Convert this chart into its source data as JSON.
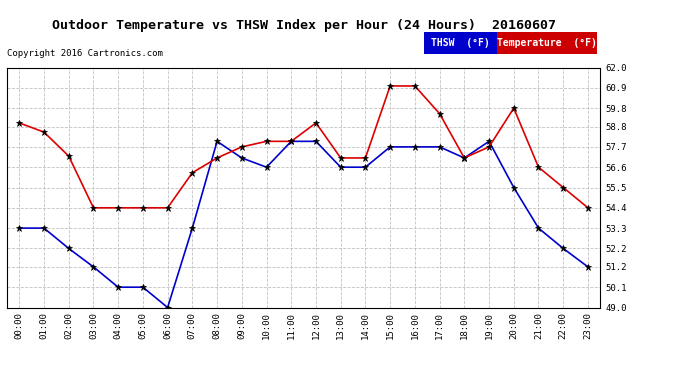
{
  "title": "Outdoor Temperature vs THSW Index per Hour (24 Hours)  20160607",
  "copyright": "Copyright 2016 Cartronics.com",
  "x_labels": [
    "00:00",
    "01:00",
    "02:00",
    "03:00",
    "04:00",
    "05:00",
    "06:00",
    "07:00",
    "08:00",
    "09:00",
    "10:00",
    "11:00",
    "12:00",
    "13:00",
    "14:00",
    "15:00",
    "16:00",
    "17:00",
    "18:00",
    "19:00",
    "20:00",
    "21:00",
    "22:00",
    "23:00"
  ],
  "ylim": [
    49.0,
    62.0
  ],
  "yticks": [
    49.0,
    50.1,
    51.2,
    52.2,
    53.3,
    54.4,
    55.5,
    56.6,
    57.7,
    58.8,
    59.8,
    60.9,
    62.0
  ],
  "temperature": [
    59.0,
    58.5,
    57.2,
    54.4,
    54.4,
    54.4,
    54.4,
    56.3,
    57.1,
    57.7,
    58.0,
    58.0,
    59.0,
    57.1,
    57.1,
    61.0,
    61.0,
    59.5,
    57.1,
    57.7,
    59.8,
    56.6,
    55.5,
    54.4
  ],
  "thsw": [
    53.3,
    53.3,
    52.2,
    51.2,
    50.1,
    50.1,
    49.0,
    53.3,
    58.0,
    57.1,
    56.6,
    58.0,
    58.0,
    56.6,
    56.6,
    57.7,
    57.7,
    57.7,
    57.1,
    58.0,
    55.5,
    53.3,
    52.2,
    51.2
  ],
  "temp_color": "#dd0000",
  "thsw_color": "#0000cc",
  "bg_color": "#ffffff",
  "grid_color": "#bbbbbb",
  "legend_thsw_bg": "#0000cc",
  "legend_temp_bg": "#cc0000",
  "legend_text_color": "#ffffff",
  "figwidth": 6.9,
  "figheight": 3.75,
  "dpi": 100
}
